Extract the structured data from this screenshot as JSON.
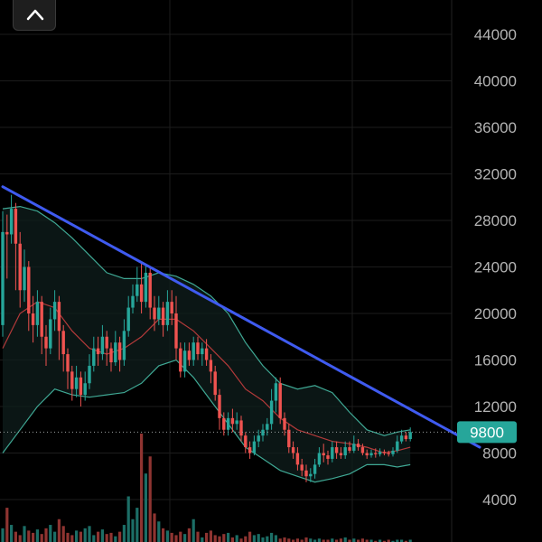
{
  "ui": {
    "collapse_button_icon": "chevron-up-icon"
  },
  "colors": {
    "background": "#000000",
    "grid": "#1c1c1c",
    "up_candle": "#26a69a",
    "down_candle": "#ef5350",
    "trendline": "#3f5bf0",
    "bollinger_band": "#3fa894",
    "basis_line": "#b33a3a",
    "price_badge": "#26a69a",
    "axis_text": "#b4b4b4"
  },
  "chart_data": {
    "type": "candlestick",
    "y_axis_ticks": [
      "44000",
      "40000",
      "36000",
      "32000",
      "28000",
      "24000",
      "20000",
      "16000",
      "12000",
      "8000",
      "4000"
    ],
    "ylim": [
      0,
      47000
    ],
    "current_price": {
      "value": 9800,
      "label": "9800"
    },
    "grid": true,
    "trendline": {
      "from": {
        "index": 0,
        "price": 30900
      },
      "to": {
        "index": 110,
        "price": 8500
      }
    },
    "candles": [
      [
        19000,
        27000,
        28800,
        18000
      ],
      [
        27000,
        26800,
        28500,
        23000
      ],
      [
        26800,
        29000,
        30200,
        26000
      ],
      [
        29000,
        26000,
        29500,
        22000
      ],
      [
        26000,
        22000,
        27000,
        20500
      ],
      [
        22000,
        24000,
        25500,
        21000
      ],
      [
        24000,
        20000,
        24500,
        18500
      ],
      [
        20000,
        19000,
        21500,
        17500
      ],
      [
        19000,
        21000,
        22000,
        18000
      ],
      [
        21000,
        18000,
        21500,
        16500
      ],
      [
        18000,
        17000,
        19000,
        15500
      ],
      [
        17000,
        19500,
        20500,
        16500
      ],
      [
        19500,
        21000,
        22000,
        18500
      ],
      [
        21000,
        18500,
        21500,
        16000
      ],
      [
        18500,
        16500,
        19000,
        15000
      ],
      [
        16500,
        15000,
        17000,
        13500
      ],
      [
        15000,
        13500,
        15500,
        12500
      ],
      [
        13500,
        14500,
        15500,
        12800
      ],
      [
        14500,
        13000,
        15000,
        12000
      ],
      [
        13000,
        14000,
        15000,
        12500
      ],
      [
        14000,
        15500,
        16500,
        13500
      ],
      [
        15500,
        17000,
        18000,
        15000
      ],
      [
        17000,
        16500,
        18000,
        15500
      ],
      [
        16500,
        18000,
        19000,
        16000
      ],
      [
        18000,
        17000,
        18500,
        15500
      ],
      [
        17000,
        15800,
        17500,
        15000
      ],
      [
        15800,
        17500,
        18500,
        15500
      ],
      [
        17500,
        16000,
        18000,
        15000
      ],
      [
        16000,
        18500,
        19500,
        15500
      ],
      [
        18500,
        20500,
        21500,
        18000
      ],
      [
        20500,
        21500,
        22500,
        20000
      ],
      [
        21500,
        22500,
        24000,
        21000
      ],
      [
        22500,
        21000,
        24500,
        20000
      ],
      [
        21000,
        23500,
        24200,
        20500
      ],
      [
        23500,
        20500,
        24000,
        19500
      ],
      [
        20500,
        19500,
        21500,
        18500
      ],
      [
        19500,
        20500,
        21500,
        19000
      ],
      [
        20500,
        19000,
        21000,
        18000
      ],
      [
        19000,
        21000,
        22000,
        18500
      ],
      [
        21000,
        20000,
        22000,
        19000
      ],
      [
        20000,
        17000,
        21500,
        16000
      ],
      [
        17000,
        15000,
        17500,
        14500
      ],
      [
        15000,
        16800,
        17500,
        14500
      ],
      [
        16800,
        16000,
        17500,
        15500
      ],
      [
        16000,
        17500,
        18000,
        15500
      ],
      [
        17500,
        16500,
        18000,
        16000
      ],
      [
        16500,
        17000,
        17500,
        15500
      ],
      [
        17000,
        16000,
        17800,
        15500
      ],
      [
        16000,
        15000,
        16500,
        14000
      ],
      [
        15000,
        13000,
        15500,
        12500
      ],
      [
        13000,
        11000,
        13500,
        10000
      ],
      [
        11000,
        10000,
        11500,
        9500
      ],
      [
        10000,
        11000,
        11500,
        9500
      ],
      [
        11000,
        10500,
        11800,
        9800
      ],
      [
        10500,
        10800,
        11500,
        10000
      ],
      [
        10800,
        9500,
        11200,
        9000
      ],
      [
        9500,
        8500,
        9800,
        8000
      ],
      [
        8500,
        8000,
        9000,
        7500
      ],
      [
        8000,
        9000,
        9500,
        7800
      ],
      [
        9000,
        9500,
        10000,
        8500
      ],
      [
        9500,
        10000,
        10500,
        9000
      ],
      [
        10000,
        10500,
        11000,
        9500
      ],
      [
        10500,
        12500,
        13500,
        10000
      ],
      [
        12500,
        14000,
        14500,
        11500
      ],
      [
        14000,
        11000,
        14500,
        10500
      ],
      [
        11000,
        10000,
        11500,
        9500
      ],
      [
        10000,
        8500,
        10500,
        8000
      ],
      [
        8500,
        8000,
        9000,
        7500
      ],
      [
        8000,
        7000,
        8500,
        6500
      ],
      [
        7000,
        6500,
        7500,
        6000
      ],
      [
        6500,
        6000,
        7000,
        5500
      ],
      [
        6000,
        6200,
        6700,
        5500
      ],
      [
        6200,
        7000,
        7500,
        5800
      ],
      [
        7000,
        8000,
        8500,
        6800
      ],
      [
        8000,
        7800,
        8800,
        7200
      ],
      [
        7800,
        7500,
        8200,
        7000
      ],
      [
        7500,
        8500,
        9000,
        7200
      ],
      [
        8500,
        8000,
        9000,
        7500
      ],
      [
        8000,
        7800,
        8500,
        7500
      ],
      [
        7800,
        8500,
        9000,
        7500
      ],
      [
        8500,
        8200,
        9000,
        8000
      ],
      [
        8200,
        8800,
        9500,
        8000
      ],
      [
        8800,
        8500,
        9200,
        8200
      ],
      [
        8500,
        8000,
        8800,
        7800
      ],
      [
        8000,
        7800,
        8300,
        7500
      ],
      [
        7800,
        8000,
        8300,
        7600
      ],
      [
        8000,
        7900,
        8400,
        7600
      ],
      [
        7900,
        8100,
        8400,
        7700
      ],
      [
        8100,
        8000,
        8300,
        7800
      ],
      [
        8000,
        7900,
        8200,
        7700
      ],
      [
        7900,
        8200,
        8500,
        7700
      ],
      [
        8200,
        9000,
        9500,
        8000
      ],
      [
        9000,
        9500,
        10000,
        8800
      ],
      [
        9500,
        9200,
        9800,
        9000
      ],
      [
        9200,
        9800,
        10200,
        9000
      ]
    ],
    "bollinger": {
      "upper": [
        [
          0,
          29000
        ],
        [
          4,
          29200
        ],
        [
          8,
          28800
        ],
        [
          12,
          27800
        ],
        [
          16,
          26500
        ],
        [
          20,
          25000
        ],
        [
          24,
          23500
        ],
        [
          28,
          23000
        ],
        [
          32,
          23000
        ],
        [
          36,
          23500
        ],
        [
          40,
          23200
        ],
        [
          44,
          22500
        ],
        [
          48,
          21500
        ],
        [
          52,
          20000
        ],
        [
          56,
          17500
        ],
        [
          60,
          15500
        ],
        [
          64,
          14000
        ],
        [
          68,
          13500
        ],
        [
          72,
          13800
        ],
        [
          76,
          13200
        ],
        [
          80,
          11500
        ],
        [
          84,
          10000
        ],
        [
          88,
          9500
        ],
        [
          91,
          9800
        ],
        [
          94,
          10000
        ]
      ],
      "middle": [
        [
          0,
          17000
        ],
        [
          4,
          20000
        ],
        [
          8,
          21000
        ],
        [
          12,
          20500
        ],
        [
          16,
          18500
        ],
        [
          20,
          17000
        ],
        [
          24,
          16500
        ],
        [
          28,
          17000
        ],
        [
          32,
          18000
        ],
        [
          36,
          19500
        ],
        [
          40,
          19500
        ],
        [
          44,
          18500
        ],
        [
          48,
          17000
        ],
        [
          52,
          15500
        ],
        [
          56,
          13500
        ],
        [
          60,
          12500
        ],
        [
          64,
          11000
        ],
        [
          68,
          10000
        ],
        [
          72,
          9500
        ],
        [
          76,
          9000
        ],
        [
          80,
          8800
        ],
        [
          84,
          8500
        ],
        [
          88,
          8000
        ],
        [
          91,
          8200
        ],
        [
          94,
          8500
        ]
      ],
      "lower": [
        [
          0,
          8000
        ],
        [
          4,
          10000
        ],
        [
          8,
          12000
        ],
        [
          12,
          13500
        ],
        [
          16,
          13000
        ],
        [
          20,
          12800
        ],
        [
          24,
          13000
        ],
        [
          28,
          13200
        ],
        [
          32,
          14000
        ],
        [
          36,
          15500
        ],
        [
          40,
          16000
        ],
        [
          44,
          14500
        ],
        [
          48,
          12500
        ],
        [
          52,
          10500
        ],
        [
          56,
          8500
        ],
        [
          60,
          7500
        ],
        [
          64,
          6500
        ],
        [
          68,
          6000
        ],
        [
          72,
          5500
        ],
        [
          76,
          5800
        ],
        [
          80,
          6200
        ],
        [
          84,
          7000
        ],
        [
          88,
          7000
        ],
        [
          91,
          6800
        ],
        [
          94,
          7000
        ]
      ]
    },
    "volume": [
      12,
      30,
      15,
      9,
      6,
      14,
      10,
      8,
      11,
      7,
      12,
      15,
      9,
      20,
      14,
      8,
      6,
      10,
      9,
      12,
      14,
      6,
      9,
      11,
      7,
      8,
      5,
      9,
      15,
      40,
      20,
      30,
      95,
      60,
      75,
      25,
      18,
      12,
      10,
      8,
      6,
      9,
      7,
      12,
      20,
      9,
      4,
      8,
      10,
      6,
      5,
      7,
      8,
      4,
      6,
      3,
      5,
      9,
      6,
      7,
      4,
      5,
      8,
      6,
      3,
      4,
      3,
      2,
      3,
      2,
      4,
      3,
      2,
      3,
      2,
      2,
      3,
      2,
      3,
      4,
      2,
      3,
      2,
      3,
      2,
      2,
      1,
      2,
      1,
      2,
      1,
      2,
      2,
      1,
      2
    ]
  }
}
